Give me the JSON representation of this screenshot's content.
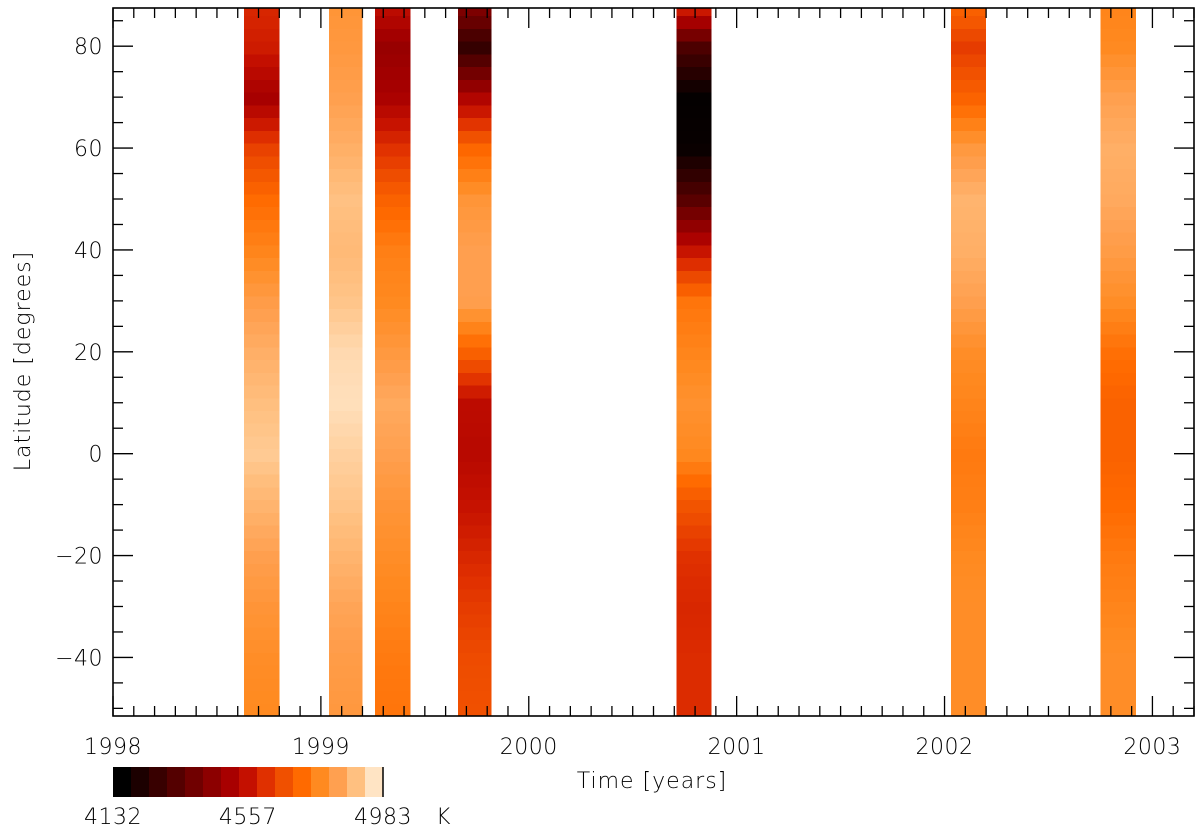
{
  "chart_data": {
    "type": "heatmap",
    "title": "",
    "xlabel": "Time [years]",
    "ylabel": "Latitude [degrees]",
    "xlim": [
      1998.0,
      2003.2
    ],
    "ylim": [
      -51.5,
      87.5
    ],
    "xticks": [
      1998,
      1999,
      2000,
      2001,
      2002,
      2003
    ],
    "xtick_labels": [
      "1998",
      "1999",
      "2000",
      "2001",
      "2002",
      "2003"
    ],
    "yticks": [
      -40,
      -20,
      0,
      20,
      40,
      60,
      80
    ],
    "ytick_labels": [
      "−40",
      "−20",
      "0",
      "20",
      "40",
      "60",
      "80"
    ],
    "grid": false,
    "value_unit": "K",
    "colorbar": {
      "position": "bottom-left",
      "min": 4132,
      "max": 4983,
      "tick_values": [
        4132,
        4557,
        4983
      ],
      "tick_labels": [
        "4132",
        "4557",
        "4983"
      ],
      "unit_label": "K",
      "colors": [
        "#000000",
        "#1c0000",
        "#380000",
        "#540000",
        "#700000",
        "#8c0000",
        "#a80000",
        "#c41000",
        "#e03000",
        "#f05000",
        "#ff6a00",
        "#ff8a20",
        "#ffa050",
        "#ffc080",
        "#ffe4c4"
      ]
    },
    "series": [
      {
        "time_range": [
          1998.63,
          1998.8
        ],
        "latitudes": [
          -50,
          -40,
          -30,
          -20,
          -10,
          0,
          10,
          20,
          30,
          40,
          50,
          60,
          70,
          80,
          87
        ],
        "temperature": [
          4800,
          4810,
          4830,
          4860,
          4900,
          4940,
          4920,
          4890,
          4850,
          4790,
          4740,
          4650,
          4490,
          4580,
          4600
        ]
      },
      {
        "time_range": [
          1999.04,
          1999.2
        ],
        "latitudes": [
          -50,
          -40,
          -30,
          -20,
          -10,
          0,
          10,
          20,
          30,
          40,
          50,
          60,
          70,
          80,
          87
        ],
        "temperature": [
          4840,
          4850,
          4870,
          4900,
          4930,
          4950,
          4975,
          4965,
          4930,
          4910,
          4925,
          4890,
          4860,
          4840,
          4830
        ]
      },
      {
        "time_range": [
          1999.26,
          1999.43
        ],
        "latitudes": [
          -50,
          -40,
          -30,
          -20,
          -10,
          0,
          10,
          20,
          30,
          40,
          50,
          60,
          70,
          80,
          87
        ],
        "temperature": [
          4760,
          4770,
          4790,
          4810,
          4830,
          4860,
          4880,
          4840,
          4800,
          4780,
          4720,
          4620,
          4500,
          4460,
          4540
        ]
      },
      {
        "time_range": [
          1999.66,
          1999.82
        ],
        "latitudes": [
          -50,
          -40,
          -30,
          -20,
          -10,
          0,
          10,
          20,
          30,
          40,
          50,
          60,
          70,
          80,
          87
        ],
        "temperature": [
          4680,
          4670,
          4640,
          4600,
          4560,
          4530,
          4540,
          4720,
          4860,
          4860,
          4830,
          4730,
          4510,
          4240,
          4410
        ]
      },
      {
        "time_range": [
          2000.71,
          2000.88
        ],
        "latitudes": [
          -50,
          -40,
          -30,
          -20,
          -10,
          0,
          10,
          20,
          30,
          40,
          50,
          60,
          70,
          80,
          87
        ],
        "temperature": [
          4610,
          4610,
          4600,
          4620,
          4690,
          4800,
          4820,
          4790,
          4760,
          4560,
          4320,
          4150,
          4140,
          4300,
          4580
        ]
      },
      {
        "time_range": [
          2002.03,
          2002.2
        ],
        "latitudes": [
          -50,
          -40,
          -30,
          -20,
          -10,
          0,
          10,
          20,
          30,
          40,
          50,
          60,
          70,
          80,
          87
        ],
        "temperature": [
          4810,
          4810,
          4810,
          4800,
          4780,
          4770,
          4790,
          4810,
          4860,
          4890,
          4900,
          4840,
          4720,
          4640,
          4720
        ]
      },
      {
        "time_range": [
          2002.75,
          2002.92
        ],
        "latitudes": [
          -50,
          -40,
          -30,
          -20,
          -10,
          0,
          10,
          20,
          30,
          40,
          50,
          60,
          70,
          80,
          87
        ],
        "temperature": [
          4810,
          4810,
          4790,
          4770,
          4740,
          4720,
          4720,
          4750,
          4810,
          4850,
          4880,
          4890,
          4860,
          4800,
          4790
        ]
      }
    ]
  }
}
